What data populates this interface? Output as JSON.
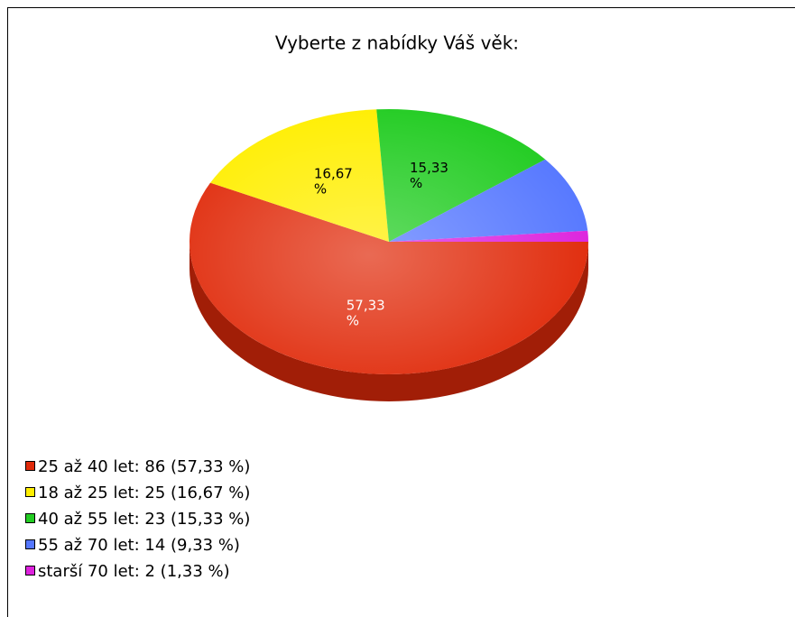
{
  "chart_data": {
    "type": "pie3d",
    "title": "Vyberte z nabídky Váš věk:",
    "categories": [
      "25 až 40 let: 86 (57,33 %)",
      "18 až 25 let: 25 (16,67 %)",
      "40 až 55 let: 23 (15,33 %)",
      "55 až 70 let: 14 (9,33 %)",
      "starší 70 let: 2 (1,33 %)"
    ],
    "values": [
      57.33,
      16.67,
      15.33,
      9.33,
      1.33
    ],
    "value_labels": [
      "57,33 %",
      "16,67 %",
      "15,33 %",
      null,
      null
    ],
    "colors": [
      "#e02a0a",
      "#ffee00",
      "#22cc22",
      "#5577ff",
      "#dd22dd"
    ],
    "legend": "bottom-left"
  }
}
